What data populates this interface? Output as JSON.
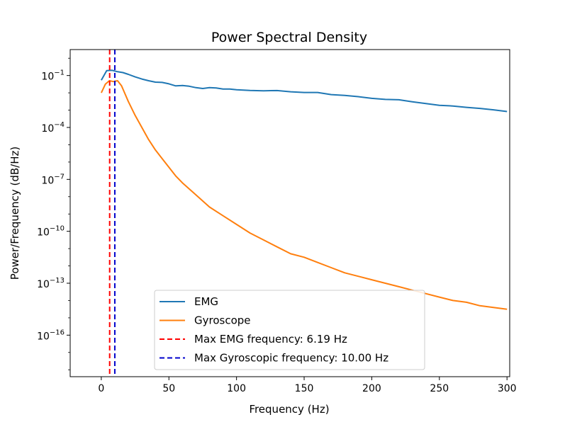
{
  "chart_data": {
    "type": "line",
    "title": "Power Spectral Density",
    "xlabel": "Frequency (Hz)",
    "ylabel": "Power/Frequency (dB/Hz)",
    "xlim": [
      -23,
      302
    ],
    "ylim_log10": [
      -18.4,
      0.5
    ],
    "yscale": "log",
    "grid": false,
    "legend_position": "lower center",
    "x_ticks": [
      0,
      50,
      100,
      150,
      200,
      250,
      300
    ],
    "x_tick_labels": [
      "0",
      "50",
      "100",
      "150",
      "200",
      "250",
      "300"
    ],
    "y_ticks_log10": [
      -1,
      -4,
      -7,
      -10,
      -13,
      -16
    ],
    "y_tick_labels": [
      {
        "base": "10",
        "exp": "−1"
      },
      {
        "base": "10",
        "exp": "−4"
      },
      {
        "base": "10",
        "exp": "−7"
      },
      {
        "base": "10",
        "exp": "−10"
      },
      {
        "base": "10",
        "exp": "−13"
      },
      {
        "base": "10",
        "exp": "−16"
      }
    ],
    "series": [
      {
        "name": "EMG",
        "color": "#1f77b4",
        "style": "solid",
        "x": [
          0,
          4,
          8,
          12,
          16,
          20,
          25,
          30,
          35,
          40,
          45,
          50,
          55,
          60,
          65,
          70,
          75,
          80,
          85,
          90,
          95,
          100,
          110,
          120,
          130,
          140,
          150,
          160,
          170,
          180,
          190,
          200,
          210,
          220,
          230,
          240,
          250,
          260,
          270,
          280,
          290,
          300
        ],
        "y_log10": [
          -1.27,
          -0.72,
          -0.7,
          -0.78,
          -0.83,
          -0.93,
          -1.08,
          -1.2,
          -1.3,
          -1.38,
          -1.4,
          -1.48,
          -1.6,
          -1.58,
          -1.62,
          -1.7,
          -1.75,
          -1.7,
          -1.72,
          -1.78,
          -1.78,
          -1.82,
          -1.86,
          -1.88,
          -1.87,
          -1.94,
          -1.98,
          -1.98,
          -2.1,
          -2.15,
          -2.22,
          -2.32,
          -2.38,
          -2.4,
          -2.52,
          -2.62,
          -2.72,
          -2.76,
          -2.84,
          -2.9,
          -2.98,
          -3.08
        ]
      },
      {
        "name": "Gyroscope",
        "color": "#ff7f0e",
        "style": "solid",
        "x": [
          0,
          3,
          6,
          9,
          12,
          15,
          20,
          25,
          30,
          35,
          40,
          45,
          50,
          55,
          60,
          70,
          80,
          90,
          100,
          110,
          120,
          130,
          140,
          150,
          160,
          170,
          180,
          190,
          200,
          210,
          220,
          230,
          240,
          250,
          260,
          270,
          280,
          290,
          300
        ],
        "y_log10": [
          -2.0,
          -1.5,
          -1.3,
          -1.35,
          -1.3,
          -1.6,
          -2.5,
          -3.3,
          -4.0,
          -4.7,
          -5.3,
          -5.8,
          -6.3,
          -6.8,
          -7.2,
          -7.9,
          -8.6,
          -9.1,
          -9.6,
          -10.1,
          -10.5,
          -10.9,
          -11.3,
          -11.5,
          -11.8,
          -12.1,
          -12.4,
          -12.6,
          -12.8,
          -13.0,
          -13.2,
          -13.4,
          -13.6,
          -13.8,
          -14.0,
          -14.1,
          -14.3,
          -14.4,
          -14.5
        ]
      },
      {
        "name": "Max EMG frequency: 6.19 Hz",
        "color": "#ff0000",
        "style": "dashed",
        "vline_x": 6.19
      },
      {
        "name": "Max Gyroscopic frequency: 10.00 Hz",
        "color": "#0000cc",
        "style": "dashed",
        "vline_x": 10.0
      }
    ]
  }
}
